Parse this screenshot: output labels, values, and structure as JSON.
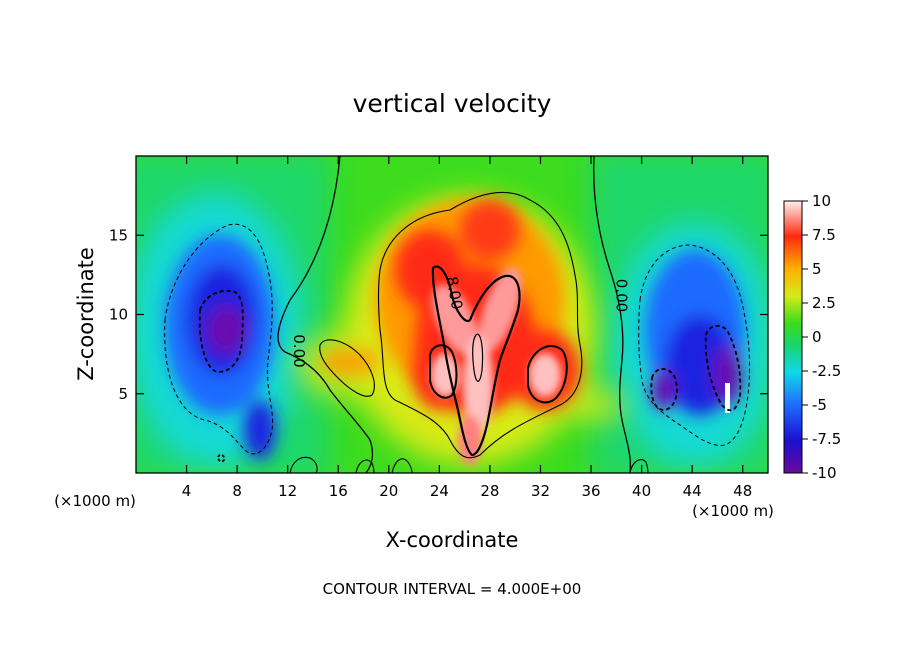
{
  "chart_data": {
    "type": "heatmap",
    "title": "vertical velocity",
    "xlabel": "X-coordinate",
    "ylabel": "Z-coordinate",
    "x_unit_left": "(×1000 m)",
    "x_unit_right": "(×1000 m)",
    "footer": "CONTOUR INTERVAL = 4.000E+00",
    "xlim": [
      0,
      50
    ],
    "ylim": [
      0,
      20
    ],
    "x_ticks": [
      4,
      8,
      12,
      16,
      20,
      24,
      28,
      32,
      36,
      40,
      44,
      48
    ],
    "y_ticks": [
      5,
      10,
      15
    ],
    "colorbar": {
      "range": [
        -10,
        10
      ],
      "ticks": [
        "10",
        "7.5",
        "5",
        "2.5",
        "0",
        "-2.5",
        "-5",
        "-7.5",
        "-10"
      ],
      "tick_values": [
        10,
        7.5,
        5,
        2.5,
        0,
        -2.5,
        -5,
        -7.5,
        -10
      ]
    },
    "contour_labels": [
      {
        "text": "8.00",
        "x": 24.8,
        "y": 11.3
      },
      {
        "text": "0.00",
        "x": 12.5,
        "y": 7.7
      },
      {
        "text": "0.00",
        "x": 38.0,
        "y": 11.2
      }
    ],
    "features": [
      {
        "name": "central updraft",
        "sign": "positive",
        "x": 27,
        "z": 9,
        "peak": 12
      },
      {
        "name": "left downdraft",
        "sign": "negative",
        "x": 7,
        "z": 9,
        "peak": -9
      },
      {
        "name": "right downdraft",
        "sign": "negative",
        "x": 46,
        "z": 6,
        "peak": -9
      }
    ]
  }
}
